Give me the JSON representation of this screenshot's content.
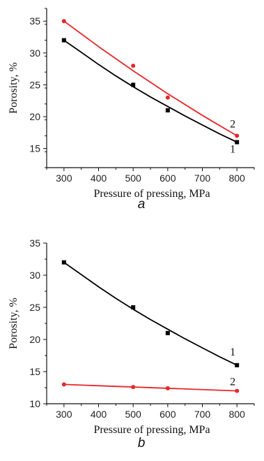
{
  "chart_data": [
    {
      "type": "scatter",
      "panel_label": "a",
      "xlabel": "Pressure of pressing, MPa",
      "ylabel": "Porosity, %",
      "xlim": [
        250,
        850
      ],
      "ylim": [
        12,
        37
      ],
      "xticks": [
        300,
        400,
        500,
        600,
        700,
        800
      ],
      "yticks": [
        15,
        20,
        25,
        30,
        35
      ],
      "grid": false,
      "series": [
        {
          "name": "1",
          "color": "#000000",
          "marker": "square",
          "x": [
            300,
            500,
            600,
            800
          ],
          "y": [
            32,
            25,
            21,
            16
          ],
          "fit": {
            "x": [
              300,
              350,
              400,
              450,
              500,
              550,
              600,
              650,
              700,
              750,
              800
            ],
            "y": [
              32.0,
              30.1,
              28.2,
              26.4,
              24.7,
              23.1,
              21.6,
              20.1,
              18.7,
              17.3,
              16.0
            ]
          }
        },
        {
          "name": "2",
          "color": "#e8262a",
          "marker": "circle",
          "x": [
            300,
            500,
            600,
            800
          ],
          "y": [
            35,
            28,
            23,
            17
          ],
          "fit": {
            "x": [
              300,
              350,
              400,
              450,
              500,
              550,
              600,
              650,
              700,
              750,
              800
            ],
            "y": [
              35.0,
              33.0,
              31.0,
              29.1,
              27.2,
              25.4,
              23.6,
              21.9,
              20.2,
              18.6,
              17.0
            ]
          }
        }
      ]
    },
    {
      "type": "scatter",
      "panel_label": "b",
      "xlabel": "Pressure of pressing, MPa",
      "ylabel": "Porosity, %",
      "xlim": [
        250,
        850
      ],
      "ylim": [
        10,
        35
      ],
      "xticks": [
        300,
        400,
        500,
        600,
        700,
        800
      ],
      "yticks": [
        10,
        15,
        20,
        25,
        30,
        35
      ],
      "grid": false,
      "series": [
        {
          "name": "1",
          "color": "#000000",
          "marker": "square",
          "x": [
            300,
            500,
            600,
            800
          ],
          "y": [
            32,
            25,
            21,
            16
          ],
          "fit": {
            "x": [
              300,
              350,
              400,
              450,
              500,
              550,
              600,
              650,
              700,
              750,
              800
            ],
            "y": [
              32.0,
              30.1,
              28.2,
              26.4,
              24.7,
              23.1,
              21.6,
              20.1,
              18.7,
              17.3,
              16.0
            ]
          }
        },
        {
          "name": "2",
          "color": "#e8262a",
          "marker": "circle",
          "x": [
            300,
            500,
            600,
            800
          ],
          "y": [
            13,
            12.6,
            12.4,
            12
          ],
          "fit": {
            "x": [
              300,
              800
            ],
            "y": [
              13.0,
              12.0
            ]
          }
        }
      ]
    }
  ]
}
